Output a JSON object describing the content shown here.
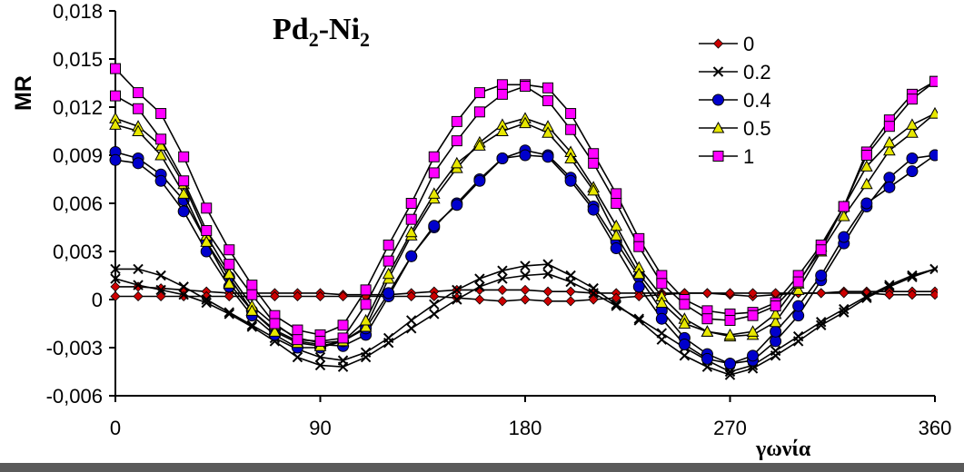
{
  "chart_data": {
    "type": "line",
    "title": "Pd",
    "title_sub1": "2",
    "title_mid": "-Ni",
    "title_sub2": "2",
    "xlabel": "γωνία",
    "ylabel": "MR",
    "xlim": [
      0,
      360
    ],
    "ylim": [
      -0.006,
      0.018
    ],
    "xticks": [
      0,
      90,
      180,
      270,
      360
    ],
    "xtick_labels": [
      "0",
      "90",
      "180",
      "270",
      "360"
    ],
    "yticks": [
      -0.006,
      -0.003,
      0,
      0.003,
      0.006,
      0.009,
      0.012,
      0.015,
      0.018
    ],
    "ytick_labels": [
      "-0,006",
      "-0,003",
      "0",
      "0,003",
      "0,006",
      "0,009",
      "0,012",
      "0,015",
      "0,018"
    ],
    "grid": false,
    "legend_position": "top-right",
    "x": [
      0,
      10,
      20,
      30,
      40,
      50,
      60,
      70,
      80,
      90,
      100,
      110,
      120,
      130,
      140,
      150,
      160,
      170,
      180,
      190,
      200,
      210,
      220,
      230,
      240,
      250,
      260,
      270,
      280,
      290,
      300,
      310,
      320,
      330,
      340,
      350,
      360
    ],
    "series": [
      {
        "name": "0",
        "color": "#cc0000",
        "marker": "diamond",
        "curves": [
          [
            0.0008,
            0.0008,
            0.0007,
            0.0006,
            0.0005,
            0.0004,
            0.0004,
            0.0004,
            0.0004,
            0.0004,
            0.0003,
            0.0003,
            0.0003,
            0.0004,
            0.0005,
            0.0006,
            0.0006,
            0.0006,
            0.0006,
            0.0005,
            0.0005,
            0.0004,
            0.0004,
            0.0004,
            0.0004,
            0.0004,
            0.0004,
            0.0003,
            0.0002,
            0.0003,
            0.0004,
            0.0004,
            0.0005,
            0.0005,
            0.0005,
            0.0005,
            0.0005
          ],
          [
            0.0002,
            0.0002,
            0.0002,
            0.0002,
            0.0002,
            0.0002,
            0.0002,
            0.0002,
            0.0002,
            0.0002,
            0.0002,
            0.0002,
            0.0002,
            0.0002,
            0.0002,
            0.0001,
            0.0,
            -0.0001,
            0.0,
            -0.0001,
            -0.0001,
            0.0,
            0.0001,
            0.0002,
            0.0003,
            0.0004,
            0.0004,
            0.0004,
            0.0004,
            0.0004,
            0.0004,
            0.0004,
            0.0004,
            0.0004,
            0.0003,
            0.0003,
            0.0003
          ]
        ]
      },
      {
        "name": "0.2",
        "color": "#000000",
        "marker": "x",
        "curves": [
          [
            0.0019,
            0.0019,
            0.0015,
            0.0008,
            0.0,
            -0.0008,
            -0.0016,
            -0.0024,
            -0.0031,
            -0.0036,
            -0.0038,
            -0.0033,
            -0.0024,
            -0.0013,
            -0.0003,
            0.0006,
            0.0013,
            0.0018,
            0.0021,
            0.0022,
            0.0015,
            0.0007,
            -0.0003,
            -0.0013,
            -0.0025,
            -0.0035,
            -0.0042,
            -0.0047,
            -0.0043,
            -0.0035,
            -0.0026,
            -0.0016,
            -0.0008,
            0.0001,
            0.0008,
            0.0014,
            0.0019
          ],
          [
            0.0013,
            0.0009,
            0.0006,
            0.0003,
            -0.0002,
            -0.0009,
            -0.0017,
            -0.0026,
            -0.0036,
            -0.0041,
            -0.0042,
            -0.0036,
            -0.0027,
            -0.0018,
            -0.0009,
            0.0,
            0.0008,
            0.0013,
            0.0015,
            0.0016,
            0.0011,
            0.0004,
            -0.0004,
            -0.0012,
            -0.0021,
            -0.003,
            -0.0038,
            -0.0045,
            -0.0041,
            -0.0032,
            -0.0023,
            -0.0014,
            -0.0006,
            0.0002,
            0.0009,
            0.0015,
            0.0019
          ]
        ]
      },
      {
        "name": "0.4",
        "color": "#0000cc",
        "marker": "circle",
        "curves": [
          [
            0.0092,
            0.0088,
            0.0078,
            0.0062,
            0.0036,
            0.0014,
            -0.0007,
            -0.0019,
            -0.0026,
            -0.0028,
            -0.0029,
            -0.0022,
            0.0002,
            0.0027,
            0.0045,
            0.006,
            0.0075,
            0.0088,
            0.0093,
            0.009,
            0.0076,
            0.0058,
            0.0036,
            0.0014,
            -0.0007,
            -0.0024,
            -0.0034,
            -0.004,
            -0.0038,
            -0.0026,
            -0.001,
            0.0012,
            0.0035,
            0.0058,
            0.0076,
            0.0088,
            0.009
          ],
          [
            0.0087,
            0.0085,
            0.0074,
            0.0055,
            0.003,
            0.0008,
            -0.001,
            -0.0022,
            -0.003,
            -0.003,
            -0.0026,
            -0.0018,
            0.0004,
            0.0027,
            0.0046,
            0.0059,
            0.0074,
            0.0088,
            0.009,
            0.0089,
            0.0074,
            0.0056,
            0.0032,
            0.0008,
            -0.0012,
            -0.0028,
            -0.0037,
            -0.004,
            -0.0035,
            -0.002,
            -0.0004,
            0.0015,
            0.0039,
            0.006,
            0.007,
            0.008,
            0.009
          ]
        ]
      },
      {
        "name": "0.5",
        "color": "#e8e800",
        "marker": "triangle",
        "curves": [
          [
            0.0113,
            0.0108,
            0.0096,
            0.0072,
            0.004,
            0.0016,
            -0.0004,
            -0.0016,
            -0.0024,
            -0.0027,
            -0.0026,
            -0.0017,
            0.0013,
            0.004,
            0.0063,
            0.0082,
            0.0098,
            0.0109,
            0.0113,
            0.0108,
            0.0092,
            0.007,
            0.0046,
            0.002,
            0.0002,
            -0.0012,
            -0.002,
            -0.0023,
            -0.0022,
            -0.0014,
            0.0006,
            0.003,
            0.0052,
            0.0072,
            0.0093,
            0.0104,
            0.0116
          ],
          [
            0.0109,
            0.0105,
            0.009,
            0.0066,
            0.0036,
            0.001,
            -0.0007,
            -0.002,
            -0.0027,
            -0.0029,
            -0.0026,
            -0.0013,
            0.0016,
            0.0042,
            0.0066,
            0.0085,
            0.0096,
            0.0105,
            0.011,
            0.0104,
            0.0088,
            0.0068,
            0.004,
            0.0016,
            -0.0002,
            -0.0015,
            -0.002,
            -0.0022,
            -0.002,
            -0.0009,
            0.001,
            0.0033,
            0.0058,
            0.0083,
            0.0098,
            0.0109,
            0.0116
          ]
        ]
      },
      {
        "name": "1",
        "color": "#ff00ff",
        "marker": "square",
        "curves": [
          [
            0.0144,
            0.0129,
            0.0116,
            0.0089,
            0.0057,
            0.0031,
            0.0009,
            -0.001,
            -0.0019,
            -0.0022,
            -0.0016,
            0.0006,
            0.0034,
            0.006,
            0.0089,
            0.0111,
            0.0129,
            0.0134,
            0.0134,
            0.0132,
            0.0116,
            0.0091,
            0.0066,
            0.0038,
            0.0015,
            0.0,
            -0.0007,
            -0.0009,
            -0.0008,
            -0.0002,
            0.0015,
            0.0034,
            0.0058,
            0.0092,
            0.0112,
            0.0128,
            0.0136
          ],
          [
            0.0127,
            0.0119,
            0.01,
            0.0074,
            0.0043,
            0.0022,
            0.0003,
            -0.0015,
            -0.0025,
            -0.0026,
            -0.0024,
            -0.0003,
            0.0024,
            0.005,
            0.0079,
            0.0099,
            0.0117,
            0.0128,
            0.0133,
            0.0124,
            0.0106,
            0.0085,
            0.006,
            0.0033,
            0.001,
            -0.0003,
            -0.0012,
            -0.0013,
            -0.001,
            -0.0004,
            0.0011,
            0.0031,
            0.0058,
            0.009,
            0.0108,
            0.0125,
            0.0136
          ]
        ]
      }
    ]
  }
}
